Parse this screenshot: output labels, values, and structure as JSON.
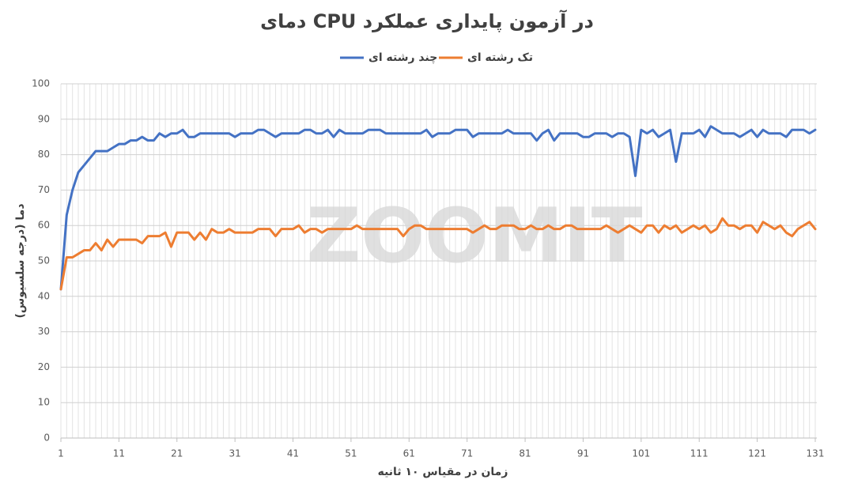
{
  "chart_data": {
    "type": "line",
    "title": "دمای CPU در آزمون پایداری عملکرد",
    "watermark": "ZOOMIT",
    "x_label": "زمان در مقیاس ۱۰ ثانیه",
    "y_label": "دما (درجه سلسیوس)",
    "x": [
      1,
      2,
      3,
      4,
      5,
      6,
      7,
      8,
      9,
      10,
      11,
      12,
      13,
      14,
      15,
      16,
      17,
      18,
      19,
      20,
      21,
      22,
      23,
      24,
      25,
      26,
      27,
      28,
      29,
      30,
      31,
      32,
      33,
      34,
      35,
      36,
      37,
      38,
      39,
      40,
      41,
      42,
      43,
      44,
      45,
      46,
      47,
      48,
      49,
      50,
      51,
      52,
      53,
      54,
      55,
      56,
      57,
      58,
      59,
      60,
      61,
      62,
      63,
      64,
      65,
      66,
      67,
      68,
      69,
      70,
      71,
      72,
      73,
      74,
      75,
      76,
      77,
      78,
      79,
      80,
      81,
      82,
      83,
      84,
      85,
      86,
      87,
      88,
      89,
      90,
      91,
      92,
      93,
      94,
      95,
      96,
      97,
      98,
      99,
      100,
      101,
      102,
      103,
      104,
      105,
      106,
      107,
      108,
      109,
      110,
      111,
      112,
      113,
      114,
      115,
      116,
      117,
      118,
      119,
      120,
      121,
      122,
      123,
      124,
      125,
      126,
      127,
      128,
      129,
      130,
      131
    ],
    "xlim": [
      1,
      131
    ],
    "xticks": [
      1,
      11,
      21,
      31,
      41,
      51,
      61,
      71,
      81,
      91,
      101,
      111,
      121,
      131
    ],
    "ylim": [
      0,
      100
    ],
    "yticks": [
      0,
      10,
      20,
      30,
      40,
      50,
      60,
      70,
      80,
      90,
      100
    ],
    "grid": true,
    "series": [
      {
        "name": "چند رشته ای",
        "color": "#4472c4",
        "values": [
          42,
          63,
          70,
          75,
          77,
          79,
          81,
          81,
          81,
          82,
          83,
          83,
          84,
          84,
          85,
          84,
          84,
          86,
          85,
          86,
          86,
          87,
          85,
          85,
          86,
          86,
          86,
          86,
          86,
          86,
          85,
          86,
          86,
          86,
          87,
          87,
          86,
          85,
          86,
          86,
          86,
          86,
          87,
          87,
          86,
          86,
          87,
          85,
          87,
          86,
          86,
          86,
          86,
          87,
          87,
          87,
          86,
          86,
          86,
          86,
          86,
          86,
          86,
          87,
          85,
          86,
          86,
          86,
          87,
          87,
          87,
          85,
          86,
          86,
          86,
          86,
          86,
          87,
          86,
          86,
          86,
          86,
          84,
          86,
          87,
          84,
          86,
          86,
          86,
          86,
          85,
          85,
          86,
          86,
          86,
          85,
          86,
          86,
          85,
          74,
          87,
          86,
          87,
          85,
          86,
          87,
          78,
          86,
          86,
          86,
          87,
          85,
          88,
          87,
          86,
          86,
          86,
          85,
          86,
          87,
          85,
          87,
          86,
          86,
          86,
          85,
          87,
          87,
          87,
          86,
          87
        ]
      },
      {
        "name": "تک رشته ای",
        "color": "#ed7d31",
        "values": [
          42,
          51,
          51,
          52,
          53,
          53,
          55,
          53,
          56,
          54,
          56,
          56,
          56,
          56,
          55,
          57,
          57,
          57,
          58,
          54,
          58,
          58,
          58,
          56,
          58,
          56,
          59,
          58,
          58,
          59,
          58,
          58,
          58,
          58,
          59,
          59,
          59,
          57,
          59,
          59,
          59,
          60,
          58,
          59,
          59,
          58,
          59,
          59,
          59,
          59,
          59,
          60,
          59,
          59,
          59,
          59,
          59,
          59,
          59,
          57,
          59,
          60,
          60,
          59,
          59,
          59,
          59,
          59,
          59,
          59,
          59,
          58,
          59,
          60,
          59,
          59,
          60,
          60,
          60,
          59,
          59,
          60,
          59,
          59,
          60,
          59,
          59,
          60,
          60,
          59,
          59,
          59,
          59,
          59,
          60,
          59,
          58,
          59,
          60,
          59,
          58,
          60,
          60,
          58,
          60,
          59,
          60,
          58,
          59,
          60,
          59,
          60,
          58,
          59,
          62,
          60,
          60,
          59,
          60,
          60,
          58,
          61,
          60,
          59,
          60,
          58,
          57,
          59,
          60,
          61,
          59
        ]
      }
    ]
  }
}
